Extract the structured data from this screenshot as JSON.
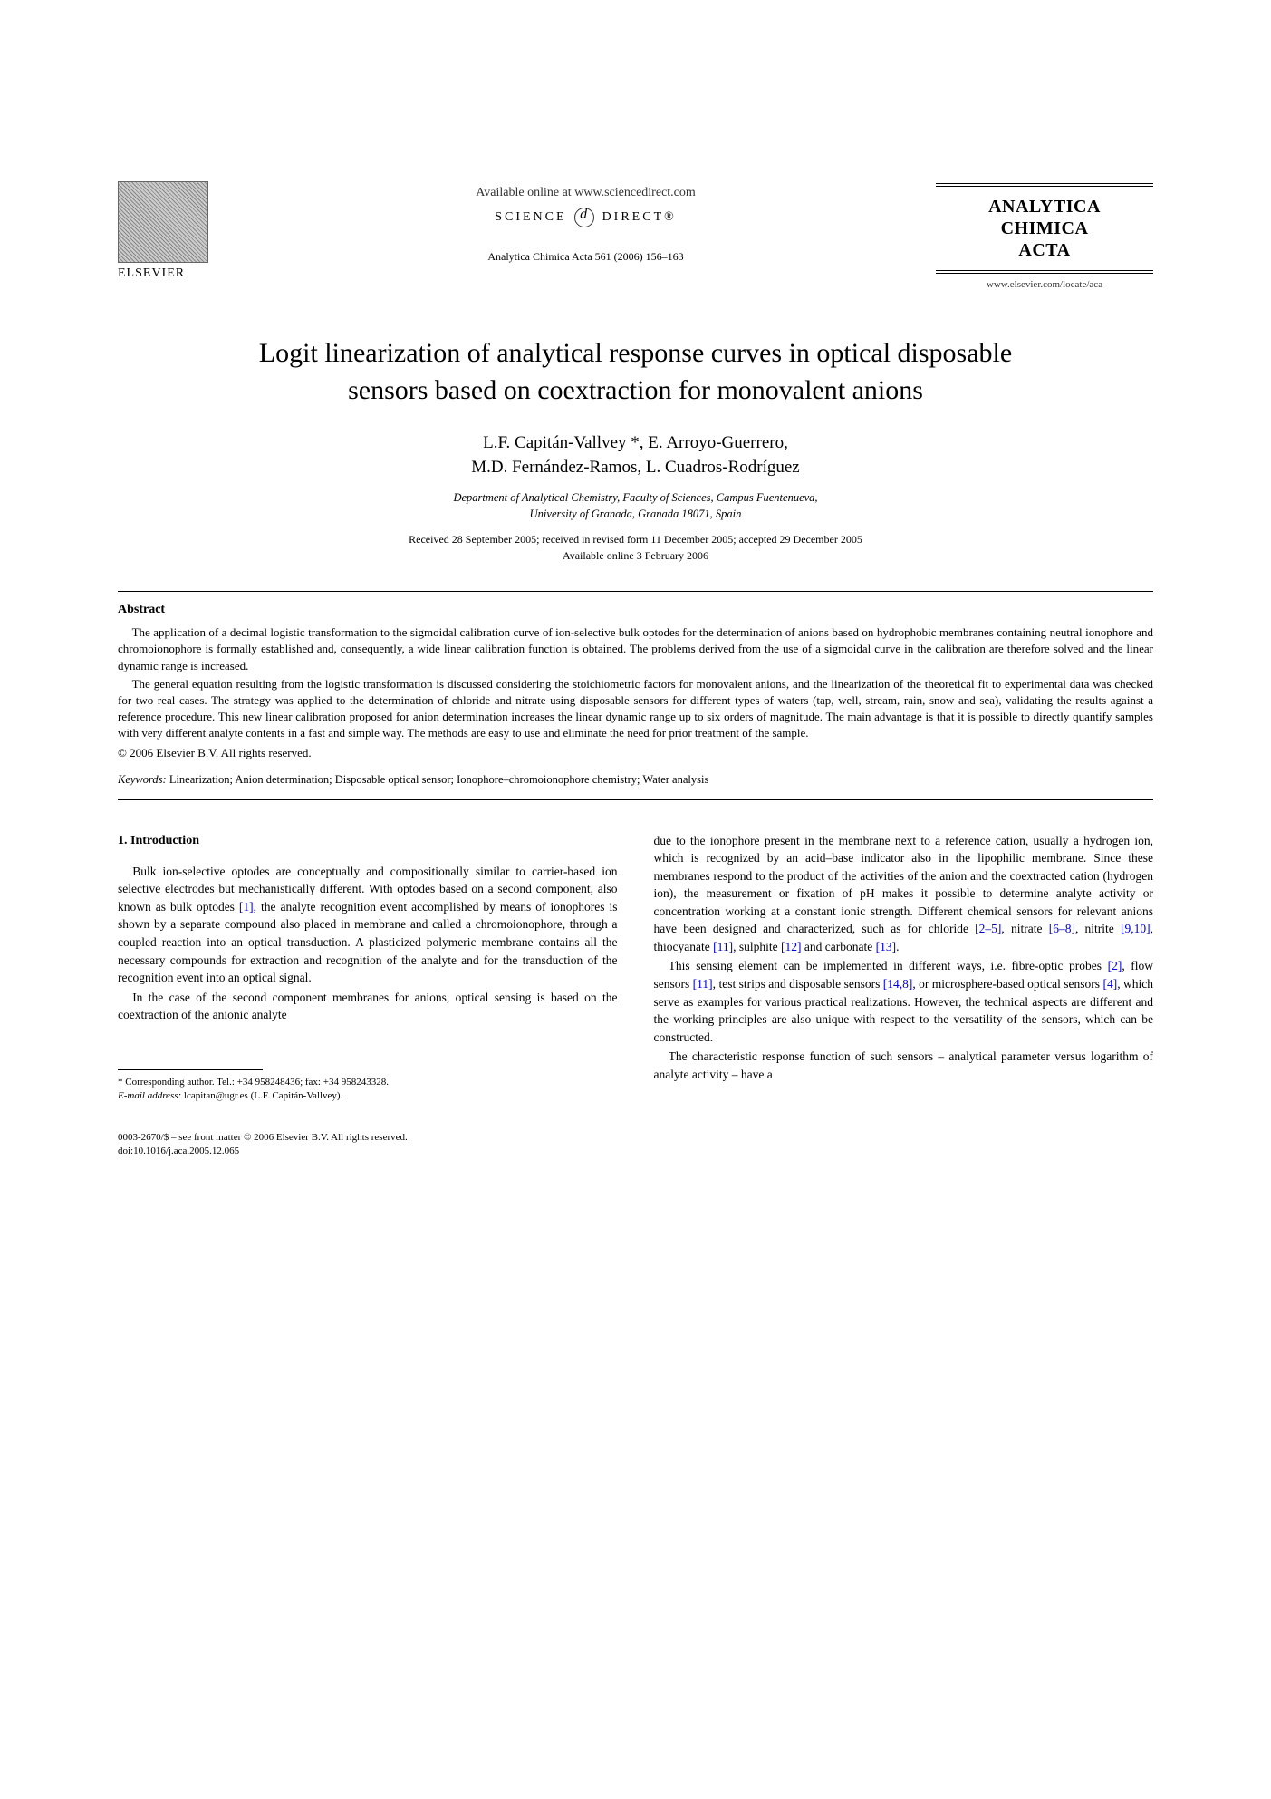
{
  "header": {
    "publisher": "ELSEVIER",
    "available_online": "Available online at www.sciencedirect.com",
    "science_direct_left": "SCIENCE",
    "science_direct_right": "DIRECT®",
    "journal_ref": "Analytica Chimica Acta 561 (2006) 156–163",
    "journal_name_l1": "ANALYTICA",
    "journal_name_l2": "CHIMICA",
    "journal_name_l3": "ACTA",
    "journal_url": "www.elsevier.com/locate/aca"
  },
  "title_l1": "Logit linearization of analytical response curves in optical disposable",
  "title_l2": "sensors based on coextraction for monovalent anions",
  "authors_l1": "L.F. Capitán-Vallvey *, E. Arroyo-Guerrero,",
  "authors_l2": "M.D. Fernández-Ramos, L. Cuadros-Rodríguez",
  "affiliation_l1": "Department of Analytical Chemistry, Faculty of Sciences, Campus Fuentenueva,",
  "affiliation_l2": "University of Granada, Granada 18071, Spain",
  "dates_l1": "Received 28 September 2005; received in revised form 11 December 2005; accepted 29 December 2005",
  "dates_l2": "Available online 3 February 2006",
  "abstract": {
    "label": "Abstract",
    "p1": "The application of a decimal logistic transformation to the sigmoidal calibration curve of ion-selective bulk optodes for the determination of anions based on hydrophobic membranes containing neutral ionophore and chromoionophore is formally established and, consequently, a wide linear calibration function is obtained. The problems derived from the use of a sigmoidal curve in the calibration are therefore solved and the linear dynamic range is increased.",
    "p2": "The general equation resulting from the logistic transformation is discussed considering the stoichiometric factors for monovalent anions, and the linearization of the theoretical fit to experimental data was checked for two real cases. The strategy was applied to the determination of chloride and nitrate using disposable sensors for different types of waters (tap, well, stream, rain, snow and sea), validating the results against a reference procedure. This new linear calibration proposed for anion determination increases the linear dynamic range up to six orders of magnitude. The main advantage is that it is possible to directly quantify samples with very different analyte contents in a fast and simple way. The methods are easy to use and eliminate the need for prior treatment of the sample.",
    "copyright": "© 2006 Elsevier B.V. All rights reserved."
  },
  "keywords": {
    "label": "Keywords:",
    "text": "  Linearization; Anion determination; Disposable optical sensor; Ionophore–chromoionophore chemistry; Water analysis"
  },
  "section1": {
    "heading": "1. Introduction",
    "p1a": "Bulk ion-selective optodes are conceptually and compositionally similar to carrier-based ion selective electrodes but mechanistically different. With optodes based on a second component, also known as bulk optodes ",
    "c1": "[1]",
    "p1b": ", the analyte recognition event accomplished by means of ionophores is shown by a separate compound also placed in membrane and called a chromoionophore, through a coupled reaction into an optical transduction. A plasticized polymeric membrane contains all the necessary compounds for extraction and recognition of the analyte and for the transduction of the recognition event into an optical signal.",
    "p2": "In the case of the second component membranes for anions, optical sensing is based on the coextraction of the anionic analyte",
    "p3a": "due to the ionophore present in the membrane next to a reference cation, usually a hydrogen ion, which is recognized by an acid–base indicator also in the lipophilic membrane. Since these membranes respond to the product of the activities of the anion and the coextracted cation (hydrogen ion), the measurement or fixation of pH makes it possible to determine analyte activity or concentration working at a constant ionic strength. Different chemical sensors for relevant anions have been designed and characterized, such as for chloride ",
    "c2": "[2–5]",
    "p3b": ", nitrate ",
    "c3": "[6–8]",
    "p3c": ", nitrite ",
    "c4": "[9,10]",
    "p3d": ", thiocyanate ",
    "c5": "[11]",
    "p3e": ", sulphite ",
    "c6": "[12]",
    "p3f": " and carbonate ",
    "c7": "[13]",
    "p3g": ".",
    "p4a": "This sensing element can be implemented in different ways, i.e. fibre-optic probes ",
    "c8": "[2]",
    "p4b": ", flow sensors ",
    "c9": "[11]",
    "p4c": ", test strips and disposable sensors ",
    "c10": "[14,8]",
    "p4d": ", or microsphere-based optical sensors ",
    "c11": "[4]",
    "p4e": ", which serve as examples for various practical realizations. However, the technical aspects are different and the working principles are also unique with respect to the versatility of the sensors, which can be constructed.",
    "p5": "The characteristic response function of such sensors – analytical parameter versus logarithm of analyte activity – have a"
  },
  "footnote": {
    "corr": "* Corresponding author. Tel.: +34 958248436; fax: +34 958243328.",
    "email_label": "E-mail address:",
    "email": " lcapitan@ugr.es (L.F. Capitán-Vallvey)."
  },
  "footer": {
    "line1": "0003-2670/$ – see front matter © 2006 Elsevier B.V. All rights reserved.",
    "line2": "doi:10.1016/j.aca.2005.12.065"
  }
}
